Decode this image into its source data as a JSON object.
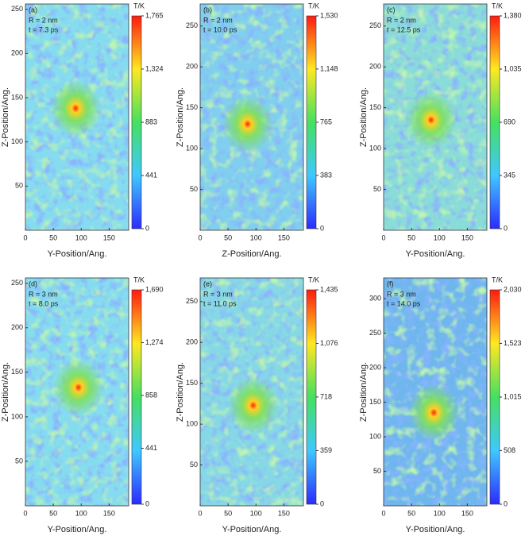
{
  "chart_data": [
    {
      "type": "heatmap",
      "panel": "(a)",
      "notes": [
        "R = 2 nm",
        "t = 7.3 ps"
      ],
      "xlabel": "Y-Position/Ang.",
      "ylabel": "Z-Position/Ang.",
      "xlim": [
        0,
        185
      ],
      "xticks": [
        0,
        50,
        100,
        150
      ],
      "ylim": [
        0,
        256
      ],
      "yticks": [
        50,
        100,
        150,
        200,
        250
      ],
      "colorbar_title": "T/K",
      "clim": [
        0,
        1765
      ],
      "cticks": [
        0,
        441,
        883,
        {
          "value": 1324,
          "label": "1,324"
        },
        {
          "value": 1765,
          "label": "1,765"
        }
      ],
      "base_color": "#86dcef",
      "hot_spot": [
        90,
        138
      ]
    },
    {
      "type": "heatmap",
      "panel": "(b)",
      "notes": [
        "R = 2 nm",
        "t = 10.0 ps"
      ],
      "xlabel": "Z-Position/Ang.",
      "ylabel": "Z-Position/Ang.",
      "xlim": [
        0,
        185
      ],
      "xticks": [
        0,
        50,
        100,
        150
      ],
      "ylim": [
        0,
        277
      ],
      "yticks": [
        50,
        100,
        150,
        200,
        250
      ],
      "colorbar_title": "T/K",
      "clim": [
        0,
        1530
      ],
      "cticks": [
        0,
        383,
        765,
        {
          "value": 1148,
          "label": "1,148"
        },
        {
          "value": 1530,
          "label": "1,530"
        }
      ],
      "base_color": "#80cfee",
      "hot_spot": [
        85,
        130
      ]
    },
    {
      "type": "heatmap",
      "panel": "(c)",
      "notes": [
        "R = 2 nm",
        "t = 12.5 ps"
      ],
      "xlabel": "Y-Position/Ang.",
      "ylabel": "Z-Position/Ang.",
      "xlim": [
        0,
        185
      ],
      "xticks": [
        0,
        50,
        100,
        150
      ],
      "ylim": [
        0,
        277
      ],
      "yticks": [
        50,
        100,
        150,
        200,
        250
      ],
      "colorbar_title": "T/K",
      "clim": [
        0,
        1380
      ],
      "cticks": [
        0,
        345,
        690,
        {
          "value": 1035,
          "label": "1,035"
        },
        {
          "value": 1380,
          "label": "1,380"
        }
      ],
      "base_color": "#8adcd8",
      "hot_spot": [
        85,
        135
      ]
    },
    {
      "type": "heatmap",
      "panel": "(d)",
      "notes": [
        "R = 3 nm",
        "t = 8.0 ps"
      ],
      "xlabel": "Y-Position/Ang.",
      "ylabel": "Z-Position/Ang.",
      "xlim": [
        0,
        185
      ],
      "xticks": [
        0,
        50,
        100,
        150
      ],
      "ylim": [
        0,
        256
      ],
      "yticks": [
        50,
        100,
        150,
        200,
        250
      ],
      "colorbar_title": "T/K",
      "clim": [
        0,
        1690
      ],
      "cticks": [
        0,
        441,
        858,
        {
          "value": 1274,
          "label": "1,274"
        },
        {
          "value": 1690,
          "label": "1,690"
        }
      ],
      "base_color": "#86dcef",
      "hot_spot": [
        95,
        133
      ]
    },
    {
      "type": "heatmap",
      "panel": "(e)",
      "notes": [
        "R = 3 nm",
        "t = 11.0 ps"
      ],
      "xlabel": "Y-Position/Ang.",
      "ylabel": "Z-Position/Ang.",
      "xlim": [
        0,
        185
      ],
      "xticks": [
        0,
        50,
        100,
        150
      ],
      "ylim": [
        0,
        279
      ],
      "yticks": [
        50,
        100,
        150,
        200,
        250
      ],
      "colorbar_title": "T/K",
      "clim": [
        0,
        1435
      ],
      "cticks": [
        0,
        359,
        718,
        {
          "value": 1076,
          "label": "1,076"
        },
        {
          "value": 1435,
          "label": "1,435"
        }
      ],
      "base_color": "#86d8e6",
      "hot_spot": [
        95,
        123
      ]
    },
    {
      "type": "heatmap",
      "panel": "(f)",
      "notes": [
        "R = 3 nm",
        "t = 14.0 ps"
      ],
      "xlabel": "Y-Position/Ang.",
      "ylabel": "Z-Position/Ang.",
      "xlim": [
        0,
        185
      ],
      "xticks": [
        0,
        50,
        100,
        150
      ],
      "ylim": [
        0,
        330
      ],
      "yticks": [
        50,
        100,
        150,
        200,
        250,
        300
      ],
      "colorbar_title": "T/K",
      "clim": [
        0,
        2030
      ],
      "cticks": [
        0,
        508,
        {
          "value": 1015,
          "label": "1,015"
        },
        {
          "value": 1523,
          "label": "1,523"
        },
        {
          "value": 2030,
          "label": "2,030"
        }
      ],
      "base_color": "#6fb6ee",
      "hot_spot": [
        90,
        135
      ]
    }
  ]
}
